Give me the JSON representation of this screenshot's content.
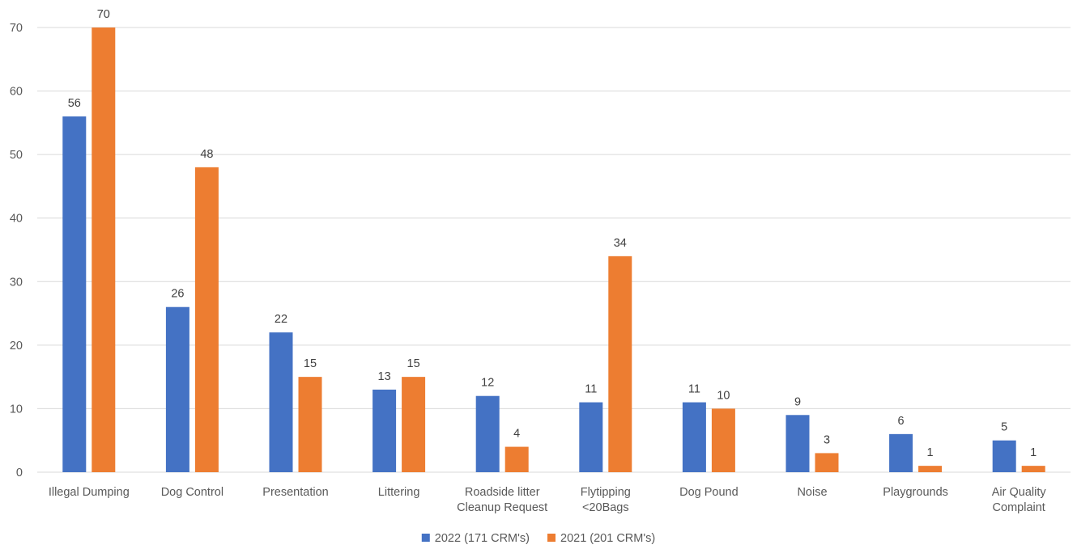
{
  "chart_data": {
    "type": "bar",
    "title": "",
    "xlabel": "",
    "ylabel": "",
    "ylim": [
      0,
      70
    ],
    "yticks": [
      0,
      10,
      20,
      30,
      40,
      50,
      60,
      70
    ],
    "grid": true,
    "legend_position": "bottom",
    "categories": [
      [
        "Illegal Dumping"
      ],
      [
        "Dog Control"
      ],
      [
        "Presentation"
      ],
      [
        "Littering"
      ],
      [
        "Roadside litter",
        "Cleanup Request"
      ],
      [
        "Flytipping",
        "<20Bags"
      ],
      [
        "Dog Pound"
      ],
      [
        "Noise"
      ],
      [
        "Playgrounds"
      ],
      [
        "Air Quality",
        "Complaint"
      ]
    ],
    "series": [
      {
        "name": "2022 (171 CRM's)",
        "color": "#4472c4",
        "values": [
          56,
          26,
          22,
          13,
          12,
          11,
          11,
          9,
          6,
          5
        ]
      },
      {
        "name": "2021 (201 CRM's)",
        "color": "#ed7d31",
        "values": [
          70,
          48,
          15,
          15,
          4,
          34,
          10,
          3,
          1,
          1
        ]
      }
    ],
    "data_labels": true
  }
}
